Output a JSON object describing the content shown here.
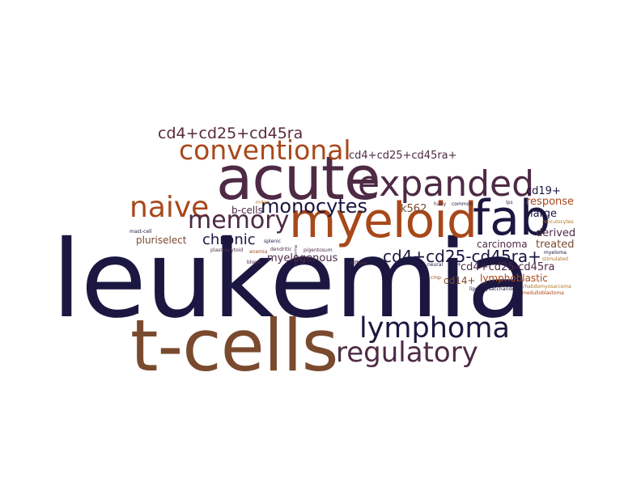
{
  "colors": {
    "navy": "#1b1740",
    "plum": "#4e2a45",
    "rust": "#a8481a",
    "brown": "#7a4a2e",
    "wine": "#5a2a3a",
    "gold": "#b0762a"
  },
  "words": [
    {
      "text": "leukemia",
      "color": "navy"
    },
    {
      "text": "t-cells",
      "color": "brown"
    },
    {
      "text": "acute",
      "color": "plum"
    },
    {
      "text": "myeloid",
      "color": "rust"
    },
    {
      "text": "fab",
      "color": "navy"
    },
    {
      "text": "expanded",
      "color": "plum"
    },
    {
      "text": "conventional",
      "color": "rust"
    },
    {
      "text": "lymphoma",
      "color": "navy"
    },
    {
      "text": "regulatory",
      "color": "plum"
    },
    {
      "text": "naive",
      "color": "rust"
    },
    {
      "text": "memory",
      "color": "plum"
    },
    {
      "text": "monocytes",
      "color": "navy"
    },
    {
      "text": "cd4+cd25+cd45ra",
      "color": "wine"
    },
    {
      "text": "cd4+cd25-cd45ra+",
      "color": "navy"
    },
    {
      "text": "chronic",
      "color": "navy"
    },
    {
      "text": "cd4+cd25+cd45ra+",
      "color": "plum"
    },
    {
      "text": "myelogenous",
      "color": "plum"
    },
    {
      "text": "b-cells",
      "color": "plum"
    },
    {
      "text": "pluriselect",
      "color": "brown"
    },
    {
      "text": "k562",
      "color": "brown"
    },
    {
      "text": "cd19+",
      "color": "navy"
    },
    {
      "text": "response",
      "color": "rust"
    },
    {
      "text": "large",
      "color": "navy"
    },
    {
      "text": "derived",
      "color": "plum"
    },
    {
      "text": "treated",
      "color": "brown"
    },
    {
      "text": "carcinoma",
      "color": "plum"
    },
    {
      "text": "cd4+cd25-cd45ra",
      "color": "plum"
    },
    {
      "text": "lymphoblastic",
      "color": "rust"
    },
    {
      "text": "cd14+",
      "color": "brown"
    },
    {
      "text": "mast-cell",
      "color": "navy"
    },
    {
      "text": "plasmacytoid",
      "color": "plum"
    },
    {
      "text": "m4eo",
      "color": "gold"
    },
    {
      "text": "anemia",
      "color": "rust"
    },
    {
      "text": "splenic",
      "color": "navy"
    },
    {
      "text": "dendritic",
      "color": "plum"
    },
    {
      "text": "pigentosum",
      "color": "plum"
    },
    {
      "text": "blood",
      "color": "plum"
    },
    {
      "text": "diffuse",
      "color": "plum"
    },
    {
      "text": "hairy",
      "color": "plum"
    },
    {
      "text": "common",
      "color": "navy"
    },
    {
      "text": "lps",
      "color": "plum"
    },
    {
      "text": "neural",
      "color": "navy"
    },
    {
      "text": "cd4+",
      "color": "navy"
    },
    {
      "text": "cmp",
      "color": "rust"
    },
    {
      "text": "lipopolysaccharide",
      "color": "navy"
    },
    {
      "text": "reticulocytes",
      "color": "gold"
    },
    {
      "text": "myeloma",
      "color": "navy"
    },
    {
      "text": "stimulated",
      "color": "gold"
    },
    {
      "text": "rhabdomyosarcoma",
      "color": "gold"
    },
    {
      "text": "medulloblastoma",
      "color": "rust"
    },
    {
      "text": "xeroderma",
      "color": "plum"
    }
  ]
}
